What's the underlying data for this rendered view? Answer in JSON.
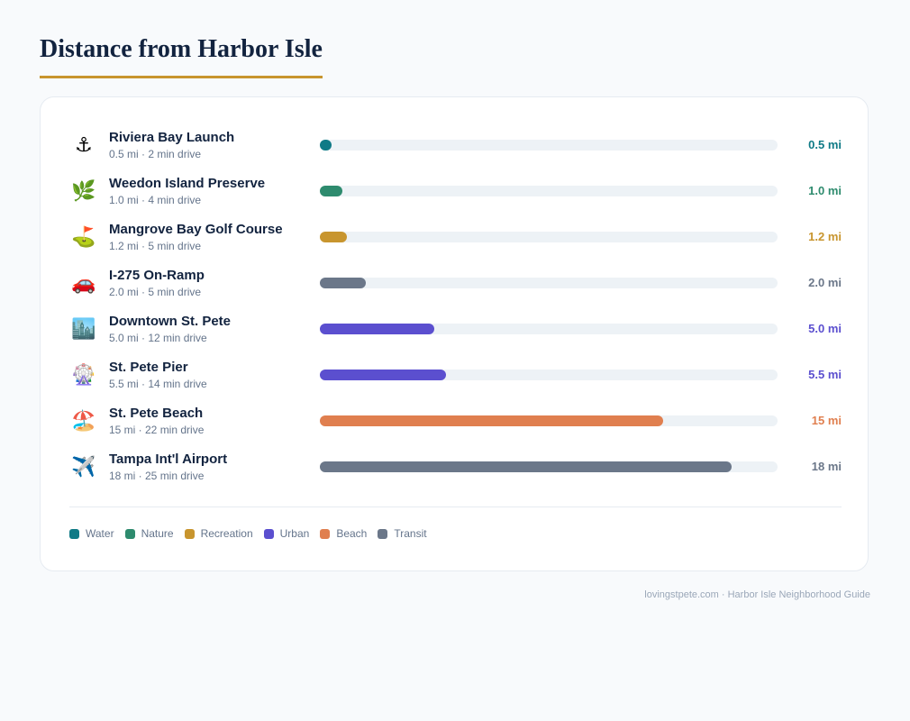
{
  "page": {
    "title": "Distance from Harbor Isle",
    "footer": "lovingstpete.com · Harbor Isle Neighborhood Guide"
  },
  "legend": [
    {
      "label": "Water",
      "color": "#0f7a86"
    },
    {
      "label": "Nature",
      "color": "#2e8b6e"
    },
    {
      "label": "Recreation",
      "color": "#c8952e"
    },
    {
      "label": "Urban",
      "color": "#5b4fcf"
    },
    {
      "label": "Beach",
      "color": "#e07f4f"
    },
    {
      "label": "Transit",
      "color": "#6b7789"
    }
  ],
  "chart_data": {
    "type": "bar",
    "orientation": "horizontal",
    "xlim": [
      0,
      20
    ],
    "grid": false,
    "legend_placement": "bottom",
    "items": [
      {
        "name": "Riviera Bay Launch",
        "subtitle": "0.5 mi · 2 min drive",
        "value": 0.5,
        "value_label": "0.5 mi",
        "category": "Water",
        "icon": "⚓",
        "icon_name": "anchor-icon"
      },
      {
        "name": "Weedon Island Preserve",
        "subtitle": "1.0 mi · 4 min drive",
        "value": 1.0,
        "value_label": "1.0 mi",
        "category": "Nature",
        "icon": "🌿",
        "icon_name": "herb-icon"
      },
      {
        "name": "Mangrove Bay Golf Course",
        "subtitle": "1.2 mi · 5 min drive",
        "value": 1.2,
        "value_label": "1.2 mi",
        "category": "Recreation",
        "icon": "⛳",
        "icon_name": "golf-icon"
      },
      {
        "name": "I-275 On-Ramp",
        "subtitle": "2.0 mi · 5 min drive",
        "value": 2.0,
        "value_label": "2.0 mi",
        "category": "Transit",
        "icon": "🚗",
        "icon_name": "car-icon"
      },
      {
        "name": "Downtown St. Pete",
        "subtitle": "5.0 mi · 12 min drive",
        "value": 5.0,
        "value_label": "5.0 mi",
        "category": "Urban",
        "icon": "🏙️",
        "icon_name": "city-icon"
      },
      {
        "name": "St. Pete Pier",
        "subtitle": "5.5 mi · 14 min drive",
        "value": 5.5,
        "value_label": "5.5 mi",
        "category": "Urban",
        "icon": "🎡",
        "icon_name": "ferris-wheel-icon"
      },
      {
        "name": "St. Pete Beach",
        "subtitle": "15 mi · 22 min drive",
        "value": 15,
        "value_label": "15 mi",
        "category": "Beach",
        "icon": "🏖️",
        "icon_name": "beach-umbrella-icon"
      },
      {
        "name": "Tampa Int'l Airport",
        "subtitle": "18 mi · 25 min drive",
        "value": 18,
        "value_label": "18 mi",
        "category": "Transit",
        "icon": "✈️",
        "icon_name": "airplane-icon"
      }
    ]
  }
}
